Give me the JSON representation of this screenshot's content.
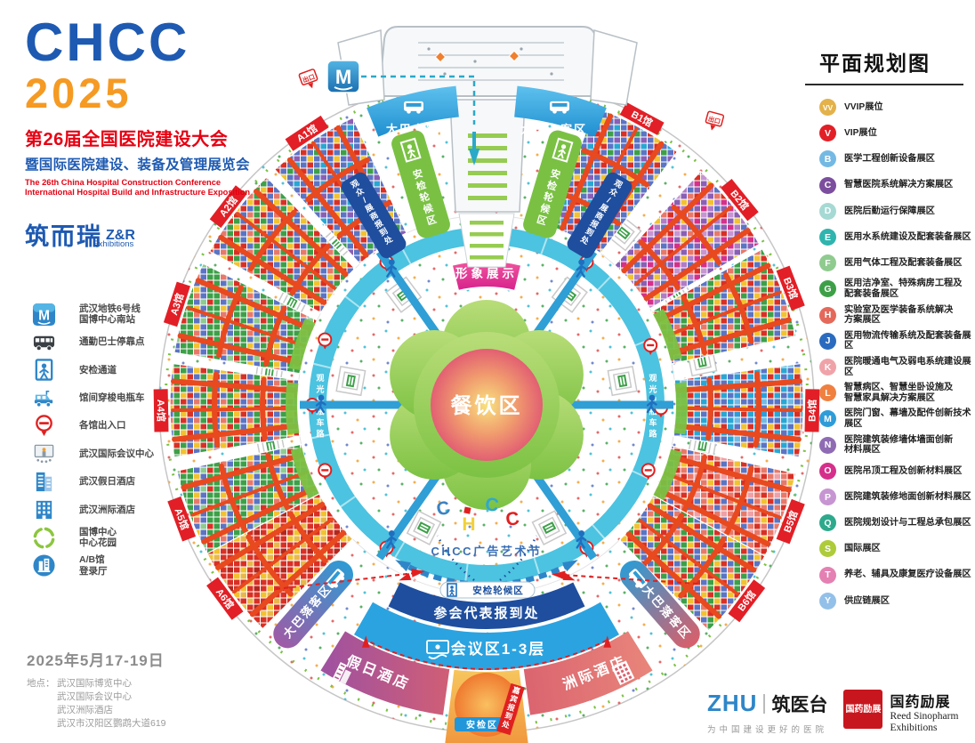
{
  "header": {
    "logo_line1": "CHCC",
    "logo_line2": "2025",
    "title_cn": "第26届全国医院建设大会",
    "subtitle_cn": "暨国际医院建设、装备及管理展览会",
    "title_en_line1": "The 26th China Hospital Construction Conference",
    "title_en_line2": "International Hospital Build and Infrastructure Exposition",
    "organizer_cn": "筑而瑞",
    "organizer_abbr": "Z&R",
    "organizer_sub": "Exhibitions"
  },
  "plan_legend": {
    "title": "平面规划图",
    "items": [
      {
        "key": "VV",
        "color": "#e3b24a",
        "label": "VVIP展位"
      },
      {
        "key": "V",
        "color": "#e21f26",
        "label": "VIP展位"
      },
      {
        "key": "B",
        "color": "#74b9e4",
        "label": "医学工程创新设备展区"
      },
      {
        "key": "C",
        "color": "#7c4e9e",
        "label": "智慧医院系统解决方案展区"
      },
      {
        "key": "D",
        "color": "#a6d9d4",
        "label": "医院后勤运行保障展区"
      },
      {
        "key": "E",
        "color": "#2fb4ae",
        "label": "医用水系统建设及配套装备展区"
      },
      {
        "key": "F",
        "color": "#8fcb8f",
        "label": "医用气体工程及配套装备展区"
      },
      {
        "key": "G",
        "color": "#3da048",
        "label": "医用洁净室、特殊病房工程及\n配套装备展区"
      },
      {
        "key": "H",
        "color": "#e4695b",
        "label": "实验室及医学装备系统解决\n方案展区"
      },
      {
        "key": "J",
        "color": "#2a6bbf",
        "label": "医用物流传输系统及配套装备展区"
      },
      {
        "key": "K",
        "color": "#efa3a9",
        "label": "医院暖通电气及弱电系统建设展区"
      },
      {
        "key": "L",
        "color": "#ef8040",
        "label": "智慧病区、智慧坐卧设施及\n智慧家具解决方案展区"
      },
      {
        "key": "M",
        "color": "#2f9cd8",
        "label": "医院门窗、幕墙及配件创新技术展区"
      },
      {
        "key": "N",
        "color": "#8f6bb4",
        "label": "医院建筑装修墙体墙面创新\n材料展区"
      },
      {
        "key": "O",
        "color": "#d52f8b",
        "label": "医院吊顶工程及创新材料展区"
      },
      {
        "key": "P",
        "color": "#c795d2",
        "label": "医院建筑装修地面创新材料展区"
      },
      {
        "key": "Q",
        "color": "#2ea98c",
        "label": "医院规划设计与工程总承包展区"
      },
      {
        "key": "S",
        "color": "#aecb3a",
        "label": "国际展区"
      },
      {
        "key": "T",
        "color": "#e480b2",
        "label": "养老、辅具及康复医疗设备展区"
      },
      {
        "key": "Y",
        "color": "#93c0e8",
        "label": "供应链展区"
      }
    ]
  },
  "facility_legend": [
    {
      "icon": "metro-icon",
      "label": "武汉地铁6号线\n国博中心南站"
    },
    {
      "icon": "bus-icon",
      "label": "通勤巴士停靠点"
    },
    {
      "icon": "security-icon",
      "label": "安检通道"
    },
    {
      "icon": "shuttle-icon",
      "label": "馆间穿梭电瓶车"
    },
    {
      "icon": "gate-icon",
      "label": "各馆出入口"
    },
    {
      "icon": "conference-icon",
      "label": "武汉国际会议中心"
    },
    {
      "icon": "holiday-hotel-icon",
      "label": "武汉假日酒店"
    },
    {
      "icon": "intercontinental-icon",
      "label": "武汉洲际酒店"
    },
    {
      "icon": "garden-icon",
      "label": "国博中心\n中心花园"
    },
    {
      "icon": "lobby-icon",
      "label": "A/B馆\n登录厅"
    }
  ],
  "map": {
    "halls": [
      "A1馆",
      "A2馆",
      "A3馆",
      "A4馆",
      "A5馆",
      "A6馆",
      "B1馆",
      "B2馆",
      "B3馆",
      "B4馆",
      "B5馆",
      "B6馆"
    ],
    "dining": "餐饮区",
    "image_display": "形象展示",
    "chcc_letters": [
      "C",
      "H",
      "C",
      "C"
    ],
    "ad_festival": "CHCC广告艺术节",
    "ring_label": "观光电瓶车路",
    "exit_label": "出口",
    "metro_mark": "M",
    "bus_pickup": "大巴上客区",
    "security_wait": "安检轮候区",
    "visitor_reg": "观众/展商报到处",
    "delegate_reg": "参会代表报到处",
    "conference_zone": "会议区1-3层",
    "holiday_hotel": "假日酒店",
    "intercontinental_hotel": "洲际酒店",
    "security_zone": "安检区",
    "guest_reg": "嘉宾报到处",
    "bus_drop": "大巴落客区"
  },
  "footer": {
    "date": "2025年5月17-19日",
    "address_label": "地点：",
    "address_lines": [
      "武汉国际博览中心",
      "武汉国际会议中心",
      "武汉洲际酒店",
      "武汉市汉阳区鹦鹉大道619"
    ]
  },
  "partners": {
    "zhu_abbr": "ZHU",
    "zhu_name": "筑医台",
    "zhu_tagline": "为中国建设更好的医院",
    "reed_seal": "国药励展",
    "reed_cn": "国药励展",
    "reed_en_line1": "Reed Sinopharm",
    "reed_en_line2": "Exhibitions"
  }
}
